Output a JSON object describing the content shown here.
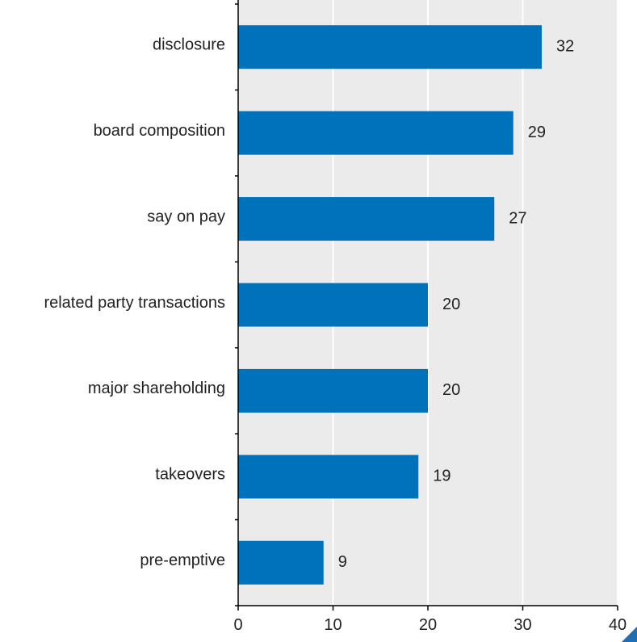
{
  "chart_data": {
    "type": "bar",
    "orientation": "horizontal",
    "categories": [
      "disclosure",
      "board composition",
      "say on pay",
      "related party transactions",
      "major shareholding",
      "takeovers",
      "pre-emptive"
    ],
    "values": [
      32,
      29,
      27,
      20,
      20,
      19,
      9
    ],
    "xlim": [
      0,
      40
    ],
    "xticks": [
      0,
      10,
      20,
      30,
      40
    ],
    "grid": true,
    "bar_color": "#0072BC",
    "plot_background": "#EBEBEB",
    "corner_accent_color": "#1F6FB2"
  }
}
